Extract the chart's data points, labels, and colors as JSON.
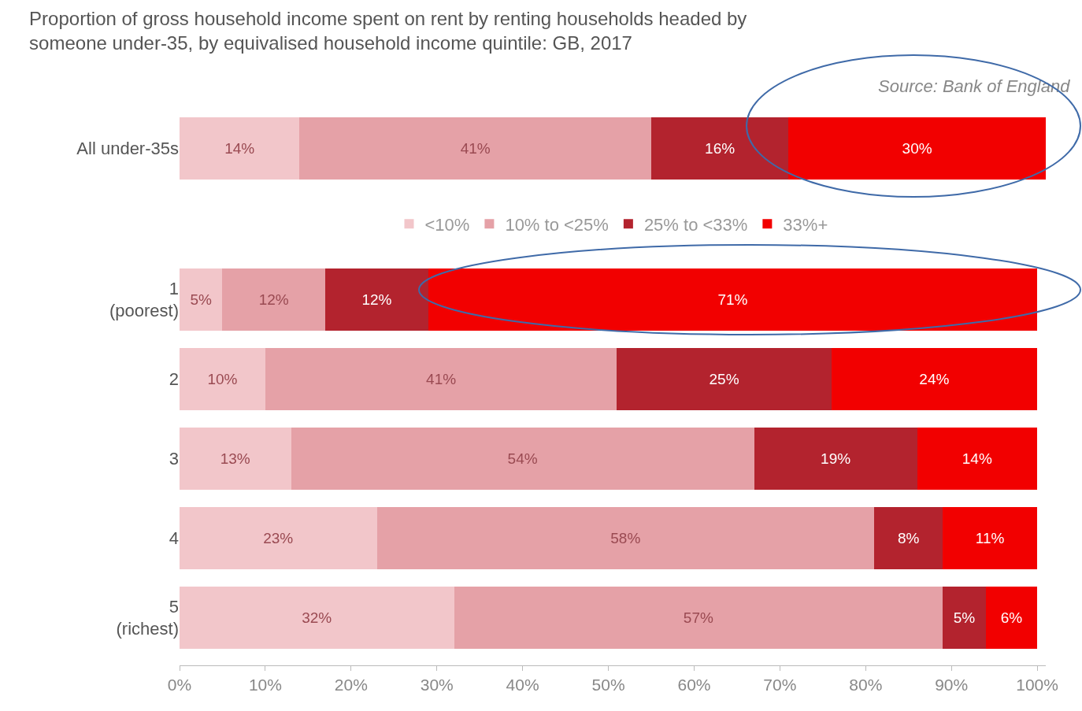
{
  "chart_data": {
    "type": "bar",
    "orientation": "horizontal",
    "stacked": true,
    "title": "Proportion of gross household income spent on rent by renting households headed by\nsomeone under-35, by equivalised household income quintile: GB, 2017",
    "annotations": [
      "Source: Bank of England"
    ],
    "categories": [
      "All under-35s",
      "1\n(poorest)",
      "2",
      "3",
      "4",
      "5\n(richest)"
    ],
    "series": [
      {
        "name": "<10%",
        "color": "#f2c6ca",
        "values": [
          14,
          5,
          10,
          13,
          23,
          32
        ],
        "value_labels": [
          "14%",
          "5%",
          "10%",
          "13%",
          "23%",
          "32%"
        ]
      },
      {
        "name": "10% to <25%",
        "color": "#e5a1a7",
        "values": [
          41,
          12,
          41,
          54,
          58,
          57
        ],
        "value_labels": [
          "41%",
          "12%",
          "41%",
          "54%",
          "58%",
          "57%"
        ]
      },
      {
        "name": "25% to <33%",
        "color": "#b3232e",
        "values": [
          16,
          12,
          25,
          19,
          8,
          5
        ],
        "value_labels": [
          "16%",
          "12%",
          "25%",
          "19%",
          "8%",
          "5%"
        ]
      },
      {
        "name": "33%+",
        "color": "#f20000",
        "values": [
          30,
          71,
          24,
          14,
          11,
          6
        ],
        "value_labels": [
          "30%",
          "71%",
          "24%",
          "14%",
          "11%",
          "6%"
        ]
      }
    ],
    "xlim": [
      0,
      101
    ],
    "xticks": [
      {
        "value": 0,
        "label": "0%"
      },
      {
        "value": 10,
        "label": "10%"
      },
      {
        "value": 20,
        "label": "20%"
      },
      {
        "value": 30,
        "label": "30%"
      },
      {
        "value": 40,
        "label": "40%"
      },
      {
        "value": 50,
        "label": "50%"
      },
      {
        "value": 60,
        "label": "60%"
      },
      {
        "value": 70,
        "label": "70%"
      },
      {
        "value": 80,
        "label": "80%"
      },
      {
        "value": 90,
        "label": "90%"
      },
      {
        "value": 100,
        "label": "100%"
      }
    ],
    "legend": "top"
  }
}
